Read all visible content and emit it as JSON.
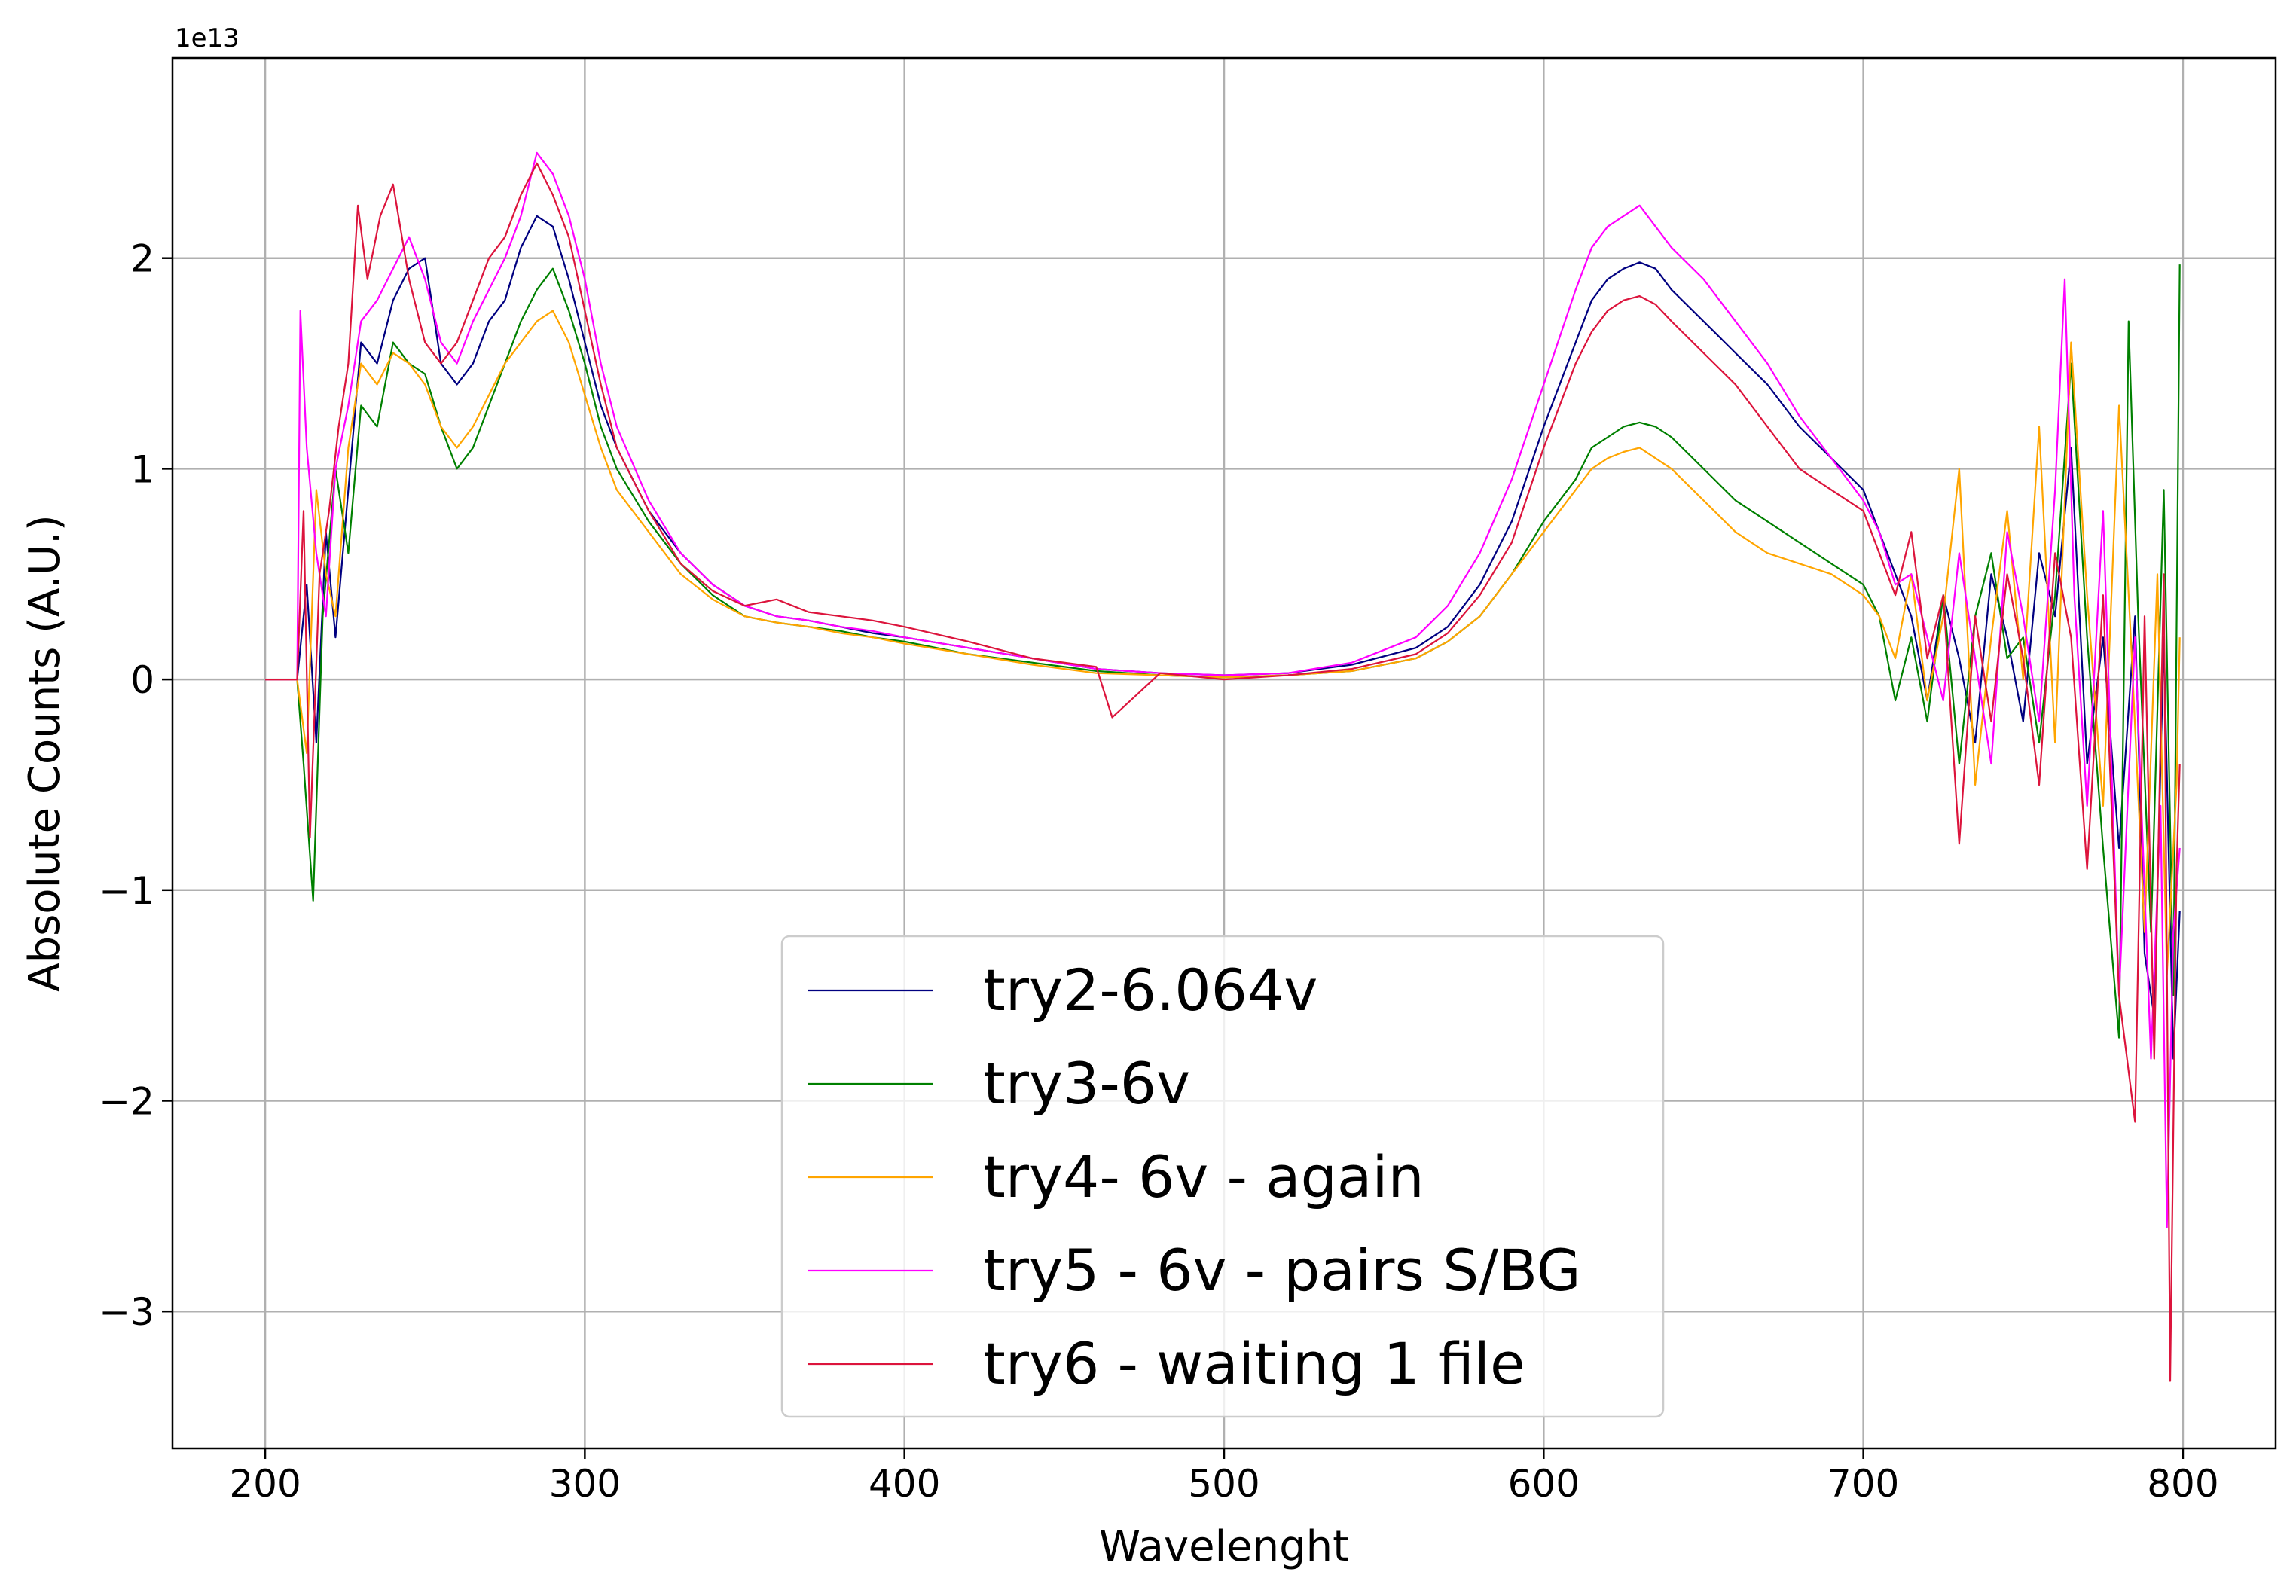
{
  "chart_data": {
    "type": "line",
    "title": "",
    "xlabel": "Wavelenght",
    "ylabel": "Absolute Counts (A.U.)",
    "y_offset_label": "1e13",
    "xlim": [
      171,
      829
    ],
    "ylim": [
      -3.65,
      2.95
    ],
    "y_scale_factor": 10000000000000.0,
    "xticks": [
      200,
      300,
      400,
      500,
      600,
      700,
      800
    ],
    "xtick_labels": [
      "200",
      "300",
      "400",
      "500",
      "600",
      "700",
      "800"
    ],
    "yticks": [
      -3,
      -2,
      -1,
      0,
      1,
      2
    ],
    "ytick_labels": [
      "−3",
      "−2",
      "−1",
      "0",
      "1",
      "2"
    ],
    "grid": true,
    "legend_position": "bottom-center",
    "series": [
      {
        "name": "try2-6.064v",
        "color": "#000080",
        "x": [
          200,
          210,
          213,
          216,
          219,
          222,
          226,
          230,
          235,
          240,
          245,
          250,
          255,
          260,
          265,
          270,
          275,
          280,
          285,
          290,
          295,
          300,
          305,
          310,
          320,
          330,
          340,
          350,
          360,
          370,
          380,
          390,
          400,
          420,
          440,
          460,
          480,
          500,
          520,
          540,
          560,
          570,
          580,
          590,
          600,
          610,
          615,
          620,
          625,
          630,
          635,
          640,
          650,
          660,
          670,
          680,
          690,
          700,
          705,
          710,
          715,
          720,
          725,
          730,
          735,
          740,
          745,
          750,
          755,
          760,
          765,
          770,
          775,
          780,
          785,
          788,
          791,
          794,
          797,
          799
        ],
        "y": [
          0,
          0,
          0.45,
          -0.3,
          0.7,
          0.2,
          0.9,
          1.6,
          1.5,
          1.8,
          1.95,
          2.0,
          1.5,
          1.4,
          1.5,
          1.7,
          1.8,
          2.05,
          2.2,
          2.15,
          1.9,
          1.6,
          1.3,
          1.1,
          0.8,
          0.6,
          0.45,
          0.35,
          0.3,
          0.28,
          0.25,
          0.22,
          0.2,
          0.15,
          0.1,
          0.05,
          0.03,
          0.02,
          0.03,
          0.07,
          0.15,
          0.25,
          0.45,
          0.75,
          1.2,
          1.6,
          1.8,
          1.9,
          1.95,
          1.98,
          1.95,
          1.85,
          1.7,
          1.55,
          1.4,
          1.2,
          1.05,
          0.9,
          0.7,
          0.5,
          0.3,
          -0.1,
          0.4,
          0.1,
          -0.3,
          0.5,
          0.2,
          -0.2,
          0.6,
          0.3,
          1.1,
          -0.4,
          0.2,
          -0.8,
          0.3,
          -1.3,
          -1.6,
          0.2,
          -1.8,
          -1.1
        ]
      },
      {
        "name": "try3-6v",
        "color": "#008000",
        "x": [
          200,
          210,
          212,
          215,
          218,
          222,
          226,
          230,
          235,
          240,
          245,
          250,
          255,
          260,
          265,
          270,
          275,
          280,
          285,
          290,
          295,
          300,
          305,
          310,
          320,
          330,
          340,
          350,
          360,
          370,
          380,
          390,
          400,
          420,
          440,
          460,
          480,
          500,
          520,
          540,
          560,
          570,
          580,
          590,
          600,
          610,
          615,
          620,
          625,
          630,
          635,
          640,
          650,
          660,
          670,
          680,
          690,
          700,
          705,
          710,
          715,
          720,
          725,
          730,
          735,
          740,
          745,
          750,
          755,
          760,
          765,
          770,
          775,
          780,
          783,
          786,
          790,
          794,
          797,
          799
        ],
        "y": [
          0,
          0,
          -0.4,
          -1.05,
          0.3,
          1.0,
          0.6,
          1.3,
          1.2,
          1.6,
          1.5,
          1.45,
          1.2,
          1.0,
          1.1,
          1.3,
          1.5,
          1.7,
          1.85,
          1.95,
          1.75,
          1.5,
          1.2,
          1.0,
          0.75,
          0.55,
          0.4,
          0.3,
          0.27,
          0.25,
          0.23,
          0.2,
          0.18,
          0.12,
          0.08,
          0.04,
          0.02,
          0.01,
          0.02,
          0.04,
          0.1,
          0.18,
          0.3,
          0.5,
          0.75,
          0.95,
          1.1,
          1.15,
          1.2,
          1.22,
          1.2,
          1.15,
          1.0,
          0.85,
          0.75,
          0.65,
          0.55,
          0.45,
          0.3,
          -0.1,
          0.2,
          -0.2,
          0.4,
          -0.4,
          0.3,
          0.6,
          0.1,
          0.2,
          -0.3,
          0.4,
          1.5,
          0.2,
          -0.8,
          -1.7,
          1.7,
          0.3,
          -1.2,
          0.9,
          -1.5,
          1.97
        ]
      },
      {
        "name": "try4- 6v - again",
        "color": "#FFA500",
        "x": [
          200,
          210,
          213,
          216,
          219,
          222,
          226,
          230,
          235,
          240,
          245,
          250,
          255,
          260,
          265,
          270,
          275,
          280,
          285,
          290,
          295,
          300,
          305,
          310,
          320,
          330,
          340,
          350,
          360,
          370,
          380,
          390,
          400,
          420,
          440,
          460,
          480,
          500,
          520,
          540,
          560,
          570,
          580,
          590,
          600,
          610,
          615,
          620,
          625,
          630,
          635,
          640,
          650,
          660,
          670,
          680,
          690,
          700,
          705,
          710,
          715,
          720,
          725,
          730,
          735,
          740,
          745,
          750,
          755,
          760,
          765,
          770,
          775,
          780,
          784,
          788,
          792,
          795,
          798,
          799
        ],
        "y": [
          0,
          0,
          -0.35,
          0.9,
          0.5,
          0.3,
          1.1,
          1.5,
          1.4,
          1.55,
          1.5,
          1.4,
          1.2,
          1.1,
          1.2,
          1.35,
          1.5,
          1.6,
          1.7,
          1.75,
          1.6,
          1.35,
          1.1,
          0.9,
          0.7,
          0.5,
          0.38,
          0.3,
          0.27,
          0.25,
          0.22,
          0.2,
          0.17,
          0.12,
          0.07,
          0.03,
          0.02,
          0.01,
          0.02,
          0.04,
          0.1,
          0.18,
          0.3,
          0.5,
          0.7,
          0.9,
          1.0,
          1.05,
          1.08,
          1.1,
          1.05,
          1.0,
          0.85,
          0.7,
          0.6,
          0.55,
          0.5,
          0.4,
          0.3,
          0.1,
          0.5,
          -0.1,
          0.3,
          1.0,
          -0.5,
          0.2,
          0.8,
          0.0,
          1.2,
          -0.3,
          1.6,
          0.4,
          -0.6,
          1.3,
          0.1,
          -1.2,
          0.5,
          -1.4,
          -0.5,
          0.2
        ]
      },
      {
        "name": "try5 - 6v - pairs S/BG",
        "color": "#FF00FF",
        "x": [
          200,
          210,
          211,
          213,
          216,
          219,
          222,
          226,
          230,
          235,
          240,
          245,
          250,
          255,
          260,
          265,
          270,
          275,
          280,
          285,
          290,
          295,
          300,
          305,
          310,
          320,
          330,
          340,
          350,
          360,
          370,
          380,
          390,
          400,
          420,
          440,
          460,
          480,
          500,
          520,
          540,
          560,
          570,
          580,
          590,
          600,
          610,
          615,
          620,
          625,
          630,
          635,
          640,
          650,
          660,
          670,
          680,
          690,
          700,
          705,
          710,
          715,
          720,
          725,
          730,
          735,
          740,
          745,
          750,
          755,
          760,
          763,
          766,
          770,
          775,
          780,
          785,
          790,
          793,
          795,
          797,
          799
        ],
        "y": [
          0,
          0,
          1.75,
          1.1,
          0.6,
          0.3,
          1.0,
          1.3,
          1.7,
          1.8,
          1.95,
          2.1,
          1.9,
          1.6,
          1.5,
          1.7,
          1.85,
          2.0,
          2.2,
          2.5,
          2.4,
          2.2,
          1.9,
          1.5,
          1.2,
          0.85,
          0.6,
          0.45,
          0.35,
          0.3,
          0.28,
          0.25,
          0.23,
          0.2,
          0.15,
          0.1,
          0.05,
          0.03,
          0.02,
          0.03,
          0.08,
          0.2,
          0.35,
          0.6,
          0.95,
          1.4,
          1.85,
          2.05,
          2.15,
          2.2,
          2.25,
          2.15,
          2.05,
          1.9,
          1.7,
          1.5,
          1.25,
          1.05,
          0.85,
          0.7,
          0.45,
          0.5,
          0.2,
          -0.1,
          0.6,
          0.1,
          -0.4,
          0.7,
          0.3,
          -0.2,
          0.9,
          1.9,
          0.4,
          -0.6,
          0.8,
          -1.5,
          0.2,
          -1.8,
          -0.6,
          -2.6,
          -1.2,
          -0.8
        ]
      },
      {
        "name": "try6 - waiting 1 file",
        "color": "#DC143C",
        "x": [
          200,
          210,
          212,
          214,
          217,
          220,
          223,
          226,
          229,
          232,
          236,
          240,
          245,
          250,
          255,
          260,
          265,
          270,
          275,
          280,
          285,
          290,
          295,
          300,
          305,
          310,
          320,
          330,
          340,
          350,
          360,
          370,
          380,
          390,
          400,
          420,
          440,
          460,
          465,
          480,
          500,
          520,
          540,
          560,
          570,
          580,
          590,
          600,
          610,
          615,
          620,
          625,
          630,
          635,
          640,
          650,
          660,
          670,
          680,
          690,
          700,
          705,
          710,
          715,
          720,
          725,
          730,
          735,
          740,
          745,
          750,
          755,
          760,
          765,
          770,
          775,
          780,
          785,
          788,
          791,
          794,
          796,
          798,
          799
        ],
        "y": [
          0,
          0,
          0.8,
          -0.75,
          0.5,
          0.8,
          1.2,
          1.5,
          2.25,
          1.9,
          2.2,
          2.35,
          1.9,
          1.6,
          1.5,
          1.6,
          1.8,
          2.0,
          2.1,
          2.3,
          2.45,
          2.3,
          2.1,
          1.75,
          1.4,
          1.1,
          0.8,
          0.55,
          0.42,
          0.35,
          0.38,
          0.32,
          0.3,
          0.28,
          0.25,
          0.18,
          0.1,
          0.06,
          -0.18,
          0.03,
          0.0,
          0.02,
          0.05,
          0.12,
          0.22,
          0.4,
          0.65,
          1.1,
          1.5,
          1.65,
          1.75,
          1.8,
          1.82,
          1.78,
          1.7,
          1.55,
          1.4,
          1.2,
          1.0,
          0.9,
          0.8,
          0.6,
          0.4,
          0.7,
          0.1,
          0.4,
          -0.78,
          0.3,
          -0.2,
          0.5,
          0.1,
          -0.5,
          0.6,
          0.2,
          -0.9,
          0.4,
          -1.5,
          -2.1,
          0.3,
          -1.8,
          0.5,
          -3.33,
          -0.9,
          -0.4
        ]
      }
    ]
  }
}
